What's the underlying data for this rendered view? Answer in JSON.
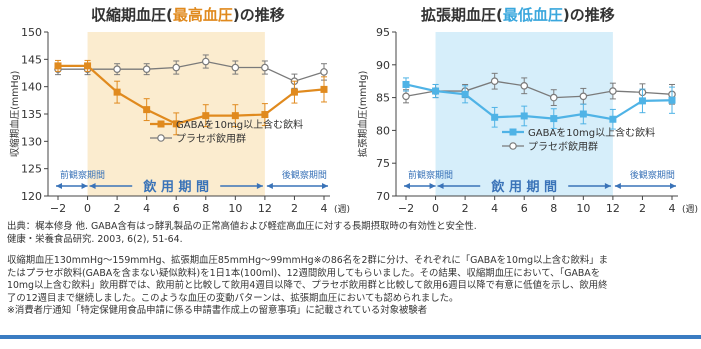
{
  "colors": {
    "gaba_left": "#e08a1e",
    "gaba_right": "#4fb3e6",
    "placebo": "#7a7a7a",
    "period_band_left": "#fbeccf",
    "period_band_right": "#d6eefa",
    "period_label": "#3a73b8"
  },
  "charts": [
    {
      "id": "systolic",
      "title_pre": "収縮期血圧(",
      "title_hl": "最高血圧",
      "title_post": ")の推移",
      "ylabel": "収縮期血圧(mmHg)",
      "yticks": [
        "120",
        "125",
        "130",
        "135",
        "140",
        "145",
        "150"
      ],
      "xticks": [
        "−2",
        "0",
        "2",
        "4",
        "6",
        "8",
        "10",
        "12",
        "2",
        "4"
      ],
      "week_unit": "(週)",
      "period_pre": "前観察期間",
      "period_main": "飲 用 期 間",
      "period_post": "後観察期間",
      "legend_gaba": "GABAを10mg以上含む飲料",
      "legend_placebo": "プラセボ飲用群"
    },
    {
      "id": "diastolic",
      "title_pre": "拡張期血圧(",
      "title_hl": "最低血圧",
      "title_post": ")の推移",
      "ylabel": "拡張期血圧(mmHg)",
      "yticks": [
        "70",
        "75",
        "80",
        "85",
        "90",
        "95"
      ],
      "xticks": [
        "−2",
        "0",
        "2",
        "4",
        "6",
        "8",
        "10",
        "12",
        "2",
        "4"
      ],
      "week_unit": "(週)",
      "period_pre": "前観察期間",
      "period_main": "飲 用 期 間",
      "period_post": "後観察期間",
      "legend_gaba": "GABAを10mg以上含む飲料",
      "legend_placebo": "プラセボ飲用群"
    }
  ],
  "chart_data": [
    {
      "type": "line",
      "title": "収縮期血圧(最高血圧)の推移",
      "xlabel": "(週)",
      "ylabel": "収縮期血圧(mmHg)",
      "ylim": [
        120,
        150
      ],
      "x": [
        "-2",
        "0",
        "2",
        "4",
        "6",
        "8",
        "10",
        "12",
        "2",
        "4"
      ],
      "series": [
        {
          "name": "GABAを10mg以上含む飲料",
          "values": [
            143.8,
            143.8,
            139.0,
            135.8,
            133.2,
            134.7,
            134.7,
            134.9,
            139.0,
            139.5
          ],
          "err": [
            1.0,
            1.0,
            2.0,
            2.0,
            2.0,
            2.0,
            2.0,
            2.0,
            2.0,
            2.3
          ]
        },
        {
          "name": "プラセボ飲用群",
          "values": [
            143.2,
            143.2,
            143.2,
            143.2,
            143.5,
            144.6,
            143.5,
            143.5,
            141.0,
            142.7
          ],
          "err": [
            1.0,
            1.0,
            1.0,
            1.0,
            1.2,
            1.2,
            1.2,
            1.2,
            1.3,
            1.5
          ]
        }
      ]
    },
    {
      "type": "line",
      "title": "拡張期血圧(最低血圧)の推移",
      "xlabel": "(週)",
      "ylabel": "拡張期血圧(mmHg)",
      "ylim": [
        70,
        95
      ],
      "x": [
        "-2",
        "0",
        "2",
        "4",
        "6",
        "8",
        "10",
        "12",
        "2",
        "4"
      ],
      "series": [
        {
          "name": "GABAを10mg以上含む飲料",
          "values": [
            87.0,
            86.0,
            85.5,
            82.0,
            82.2,
            81.8,
            82.5,
            81.7,
            84.5,
            84.6
          ],
          "err": [
            1.0,
            1.0,
            1.3,
            1.5,
            1.5,
            1.5,
            1.5,
            1.5,
            1.8,
            2.0
          ]
        },
        {
          "name": "プラセボ飲用群",
          "values": [
            85.2,
            86.0,
            86.0,
            87.5,
            86.8,
            85.0,
            85.2,
            86.0,
            85.8,
            85.5
          ],
          "err": [
            1.0,
            1.0,
            1.0,
            1.2,
            1.2,
            1.2,
            1.2,
            1.2,
            1.3,
            1.5
          ]
        }
      ]
    }
  ],
  "source": {
    "line1": "出典：梶本修身 他. GABA含有はっ酵乳製品の正常高値および軽症高血圧に対する長期摂取時の有効性と安全性.",
    "line2": "健康・栄養食品研究. 2003, 6(2), 51-64."
  },
  "note": {
    "line1": "収縮期血圧130mmHg〜159mmHg、拡張期血圧85mmHg〜99mmHg※の86名を2群に分け、それぞれに「GABAを10mg以上含む飲料」ま",
    "line2": "たはプラセボ飲料(GABAを含まない疑似飲料)を1日1本(100ml)、12週間飲用してもらいました。その結果、収縮期血圧において、「GABAを",
    "line3": "10mg以上含む飲料」飲用群では、飲用前と比較して飲用4週目以降で、プラセボ飲用群と比較して飲用6週目以降で有意に低値を示し、飲用終",
    "line4": "了の12週目まで継続しました。このような血圧の変動パターンは、拡張期血圧においても認められました。",
    "line5": "※消費者庁通知「特定保健用食品申請に係る申請書作成上の留意事項」に記載されている対象被験者"
  }
}
